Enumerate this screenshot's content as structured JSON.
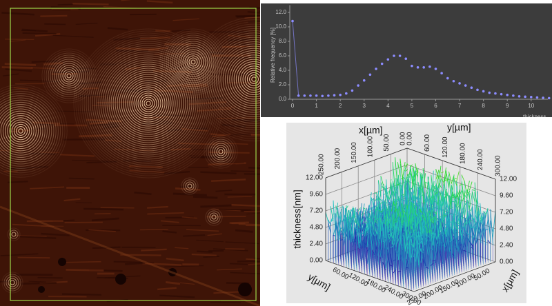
{
  "chart_data": [
    {
      "type": "scatter",
      "y_label": "Relative frequency [%]",
      "x_label": "thickness",
      "color": "#8c8cff",
      "x": [
        0,
        0.25,
        0.5,
        0.75,
        1,
        1.25,
        1.5,
        1.75,
        2,
        2.25,
        2.5,
        2.75,
        3,
        3.25,
        3.5,
        3.75,
        4,
        4.25,
        4.5,
        4.75,
        5,
        5.25,
        5.5,
        5.75,
        6,
        6.25,
        6.5,
        6.75,
        7,
        7.25,
        7.5,
        7.75,
        8,
        8.25,
        8.5,
        8.75,
        9,
        9.25,
        9.5,
        9.75,
        10,
        10.25,
        10.5,
        10.75
      ],
      "values": [
        10.8,
        0.5,
        0.5,
        0.5,
        0.5,
        0.45,
        0.5,
        0.55,
        0.6,
        0.8,
        1.2,
        1.9,
        2.6,
        3.4,
        4.2,
        4.9,
        5.5,
        6.0,
        6.0,
        5.6,
        4.6,
        4.4,
        4.4,
        4.5,
        4.2,
        3.6,
        2.9,
        2.5,
        2.2,
        1.9,
        1.6,
        1.3,
        1.1,
        0.9,
        0.8,
        0.7,
        0.6,
        0.5,
        0.4,
        0.35,
        0.3,
        0.25,
        0.2,
        0.15
      ],
      "xlim": [
        0,
        10.7
      ],
      "ylim": [
        0,
        13
      ],
      "xticks": [
        0,
        1,
        2,
        3,
        4,
        5,
        6,
        7,
        8,
        9,
        10
      ],
      "yticks": [
        {
          "value": 0,
          "label": "0.0"
        },
        {
          "value": 2,
          "label": "2.0"
        },
        {
          "value": 4,
          "label": "4.0"
        },
        {
          "value": 6,
          "label": "6.0"
        },
        {
          "value": 8,
          "label": "8.0"
        },
        {
          "value": 10,
          "label": "10.0"
        },
        {
          "value": 12,
          "label": "12.0"
        }
      ]
    },
    {
      "type": "surface3d",
      "x_label": "x[µm]",
      "y_label": "y[µm]",
      "z_label": "thickness[nm]",
      "xlim": [
        0,
        250
      ],
      "ylim": [
        0,
        300
      ],
      "zlim": [
        0,
        12
      ],
      "xticks": [
        {
          "value": 0,
          "label": "0.00"
        },
        {
          "value": 50,
          "label": "50.00"
        },
        {
          "value": 100,
          "label": "100.00"
        },
        {
          "value": 150,
          "label": "150.00"
        },
        {
          "value": 200,
          "label": "200.00"
        },
        {
          "value": 250,
          "label": "250.00"
        }
      ],
      "yticks": [
        {
          "value": 0,
          "label": "0.00"
        },
        {
          "value": 60,
          "label": "60.00"
        },
        {
          "value": 120,
          "label": "120.00"
        },
        {
          "value": 180,
          "label": "180.00"
        },
        {
          "value": 240,
          "label": "240.00"
        },
        {
          "value": 300,
          "label": "300.00"
        }
      ],
      "zticks": [
        {
          "value": 0,
          "label": "0.00"
        },
        {
          "value": 2.4,
          "label": "2.40"
        },
        {
          "value": 4.8,
          "label": "4.80"
        },
        {
          "value": 7.2,
          "label": "7.20"
        },
        {
          "value": 9.6,
          "label": "9.60"
        },
        {
          "value": 12,
          "label": "12.00"
        }
      ]
    }
  ]
}
